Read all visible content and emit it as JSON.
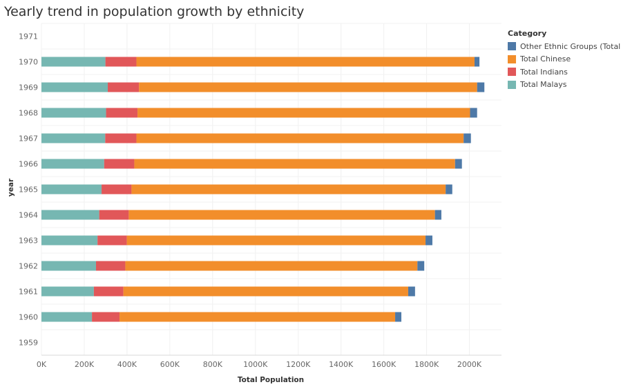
{
  "chart_data": {
    "type": "bar",
    "orientation": "horizontal",
    "stacked": true,
    "title": "Yearly trend in population growth by ethnicity",
    "xlabel": "Total Population",
    "ylabel": "year",
    "xlim": [
      0,
      2150000
    ],
    "xticks": [
      0,
      200000,
      400000,
      600000,
      800000,
      1000000,
      1200000,
      1400000,
      1600000,
      1800000,
      2000000
    ],
    "xtick_labels": [
      "0K",
      "200K",
      "400K",
      "600K",
      "800K",
      "1000K",
      "1200K",
      "1400K",
      "1600K",
      "1800K",
      "2000K"
    ],
    "categories": [
      "1971",
      "1970",
      "1969",
      "1968",
      "1967",
      "1966",
      "1965",
      "1964",
      "1963",
      "1962",
      "1961",
      "1960",
      "1959"
    ],
    "series": [
      {
        "name": "Total Malays",
        "color": "#76B7B2",
        "values": [
          0,
          299000,
          310000,
          302000,
          298000,
          293000,
          281000,
          270000,
          262000,
          255000,
          245000,
          236000,
          0
        ]
      },
      {
        "name": "Total Indians",
        "color": "#E15759",
        "values": [
          0,
          145000,
          146000,
          147000,
          146000,
          141000,
          140000,
          138000,
          137000,
          137000,
          138000,
          129000,
          0
        ]
      },
      {
        "name": "Total Chinese",
        "color": "#F28E2B",
        "values": [
          0,
          1580000,
          1580000,
          1554000,
          1529000,
          1499000,
          1468000,
          1431000,
          1396000,
          1365000,
          1331000,
          1288000,
          0
        ]
      },
      {
        "name": "Other Ethnic Groups (Total)",
        "color": "#4E79A7",
        "values": [
          0,
          23000,
          34000,
          33000,
          34000,
          32000,
          31000,
          30000,
          32000,
          32000,
          32000,
          29000,
          0
        ]
      }
    ],
    "legend": {
      "title": "Category",
      "position": "right",
      "items": [
        {
          "name": "Other Ethnic Groups (Total)",
          "color": "#4E79A7"
        },
        {
          "name": "Total Chinese",
          "color": "#F28E2B"
        },
        {
          "name": "Total Indians",
          "color": "#E15759"
        },
        {
          "name": "Total Malays",
          "color": "#76B7B2"
        }
      ]
    },
    "grid": true
  }
}
